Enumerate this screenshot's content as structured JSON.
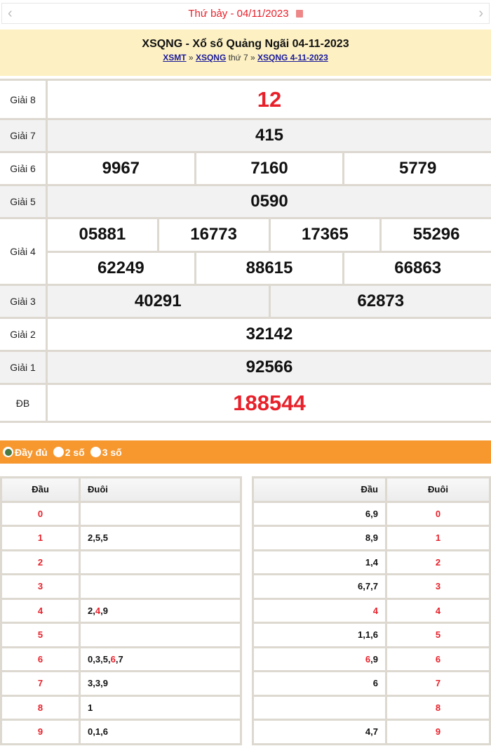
{
  "nav": {
    "day": "Thứ bảy - ",
    "date": "04/11/2023",
    "prev_icon": "chevron-left-icon",
    "next_icon": "chevron-right-icon",
    "calendar_icon": "calendar-icon"
  },
  "header": {
    "title": "XSQNG - Xổ số Quảng Ngãi 04-11-2023",
    "breadcrumb": [
      {
        "label": "XSMT"
      },
      {
        "sep": " » "
      },
      {
        "label": "XSQNG"
      },
      {
        "text": " thứ 7 » "
      },
      {
        "label": "XSQNG 4-11-2023"
      }
    ]
  },
  "prizes": [
    {
      "label": "Giải 8",
      "lines": [
        [
          "12"
        ]
      ],
      "highlight": true
    },
    {
      "label": "Giải 7",
      "lines": [
        [
          "415"
        ]
      ]
    },
    {
      "label": "Giải 6",
      "lines": [
        [
          "9967",
          "7160",
          "5779"
        ]
      ]
    },
    {
      "label": "Giải 5",
      "lines": [
        [
          "0590"
        ]
      ]
    },
    {
      "label": "Giải 4",
      "lines": [
        [
          "05881",
          "16773",
          "17365",
          "55296"
        ],
        [
          "62249",
          "88615",
          "66863"
        ]
      ]
    },
    {
      "label": "Giải 3",
      "lines": [
        [
          "40291",
          "62873"
        ]
      ]
    },
    {
      "label": "Giải 2",
      "lines": [
        [
          "32142"
        ]
      ]
    },
    {
      "label": "Giải 1",
      "lines": [
        [
          "92566"
        ]
      ]
    },
    {
      "label": "ĐB",
      "lines": [
        [
          "188544"
        ]
      ],
      "highlight": true
    }
  ],
  "options": [
    {
      "label": "Đầy đủ",
      "selected": true
    },
    {
      "label": "2 số",
      "selected": false
    },
    {
      "label": "3 số",
      "selected": false
    }
  ],
  "loto_head": {
    "col_head": "Đầu",
    "col_tail": "Đuôi",
    "rows": [
      {
        "d": "0",
        "v": []
      },
      {
        "d": "1",
        "v": [
          "2",
          "5",
          "5"
        ]
      },
      {
        "d": "2",
        "v": []
      },
      {
        "d": "3",
        "v": []
      },
      {
        "d": "4",
        "v": [
          "2",
          "4",
          "9"
        ]
      },
      {
        "d": "5",
        "v": []
      },
      {
        "d": "6",
        "v": [
          "0",
          "3",
          "5",
          "6",
          "7"
        ]
      },
      {
        "d": "7",
        "v": [
          "3",
          "3",
          "9"
        ]
      },
      {
        "d": "8",
        "v": [
          "1"
        ]
      },
      {
        "d": "9",
        "v": [
          "0",
          "1",
          "6"
        ]
      }
    ]
  },
  "loto_tail": {
    "col_head": "Đầu",
    "col_tail": "Đuôi",
    "rows": [
      {
        "d": "0",
        "v": [
          "6",
          "9"
        ]
      },
      {
        "d": "1",
        "v": [
          "8",
          "9"
        ]
      },
      {
        "d": "2",
        "v": [
          "1",
          "4"
        ]
      },
      {
        "d": "3",
        "v": [
          "6",
          "7",
          "7"
        ]
      },
      {
        "d": "4",
        "v": [
          "4"
        ]
      },
      {
        "d": "5",
        "v": [
          "1",
          "1",
          "6"
        ]
      },
      {
        "d": "6",
        "v": [
          "6",
          "9"
        ]
      },
      {
        "d": "7",
        "v": [
          "6"
        ]
      },
      {
        "d": "8",
        "v": []
      },
      {
        "d": "9",
        "v": [
          "4",
          "7"
        ]
      }
    ]
  },
  "colors": {
    "accent_red": "#e8202a",
    "orange_bar": "#f7982f",
    "header_bg": "#fdf1c3",
    "radio_selected": "#4a7a44"
  }
}
